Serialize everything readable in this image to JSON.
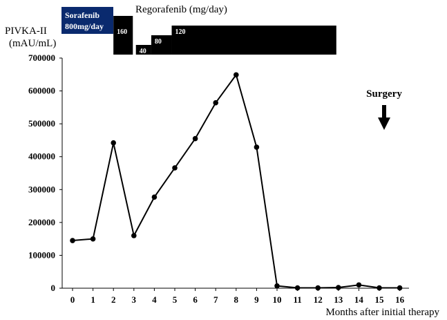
{
  "chart_data": {
    "type": "line",
    "title": "",
    "ylabel_lines": [
      "PIVKA-II",
      "(mAU/mL)"
    ],
    "xlabel": "Months after initial therapy",
    "x": [
      0,
      1,
      2,
      3,
      4,
      5,
      6,
      7,
      8,
      9,
      10,
      11,
      12,
      13,
      14,
      15,
      16
    ],
    "series": [
      {
        "values": [
          145000,
          150000,
          442000,
          160000,
          277000,
          366000,
          455000,
          564000,
          649000,
          429000,
          7000,
          1000,
          1000,
          2000,
          10000,
          1000,
          1000
        ]
      }
    ],
    "xlim": [
      -0.5,
      16.7
    ],
    "ylim": [
      0,
      700000
    ],
    "yticks": [
      0,
      100000,
      200000,
      300000,
      400000,
      500000,
      600000,
      700000
    ],
    "ytick_labels": [
      "0",
      "100000",
      "200000",
      "300000",
      "400000",
      "500000",
      "600000",
      "700000"
    ],
    "xtick_labels": [
      "0",
      "1",
      "2",
      "3",
      "4",
      "5",
      "6",
      "7",
      "8",
      "9",
      "10",
      "11",
      "12",
      "13",
      "14",
      "15",
      "16"
    ],
    "line_color": "#000000",
    "annotations": {
      "sorafenib": {
        "label_lines": [
          "Sorafenib",
          "800mg/day"
        ],
        "color": "#0a2a6e"
      },
      "regorafenib": {
        "title": "Regorafenib (mg/day)",
        "color": "#000000",
        "doses": [
          {
            "label": "160",
            "from_month": 2.1,
            "to_month": 3.05,
            "level": 160
          },
          {
            "label": "40",
            "from_month": 3.2,
            "to_month": 3.95,
            "level": 40
          },
          {
            "label": "80",
            "from_month": 3.95,
            "to_month": 4.95,
            "level": 80
          },
          {
            "label": "120",
            "from_month": 4.95,
            "to_month": 13.0,
            "level": 120
          }
        ]
      },
      "surgery": {
        "label": "Surgery",
        "month": 15.3
      }
    }
  }
}
